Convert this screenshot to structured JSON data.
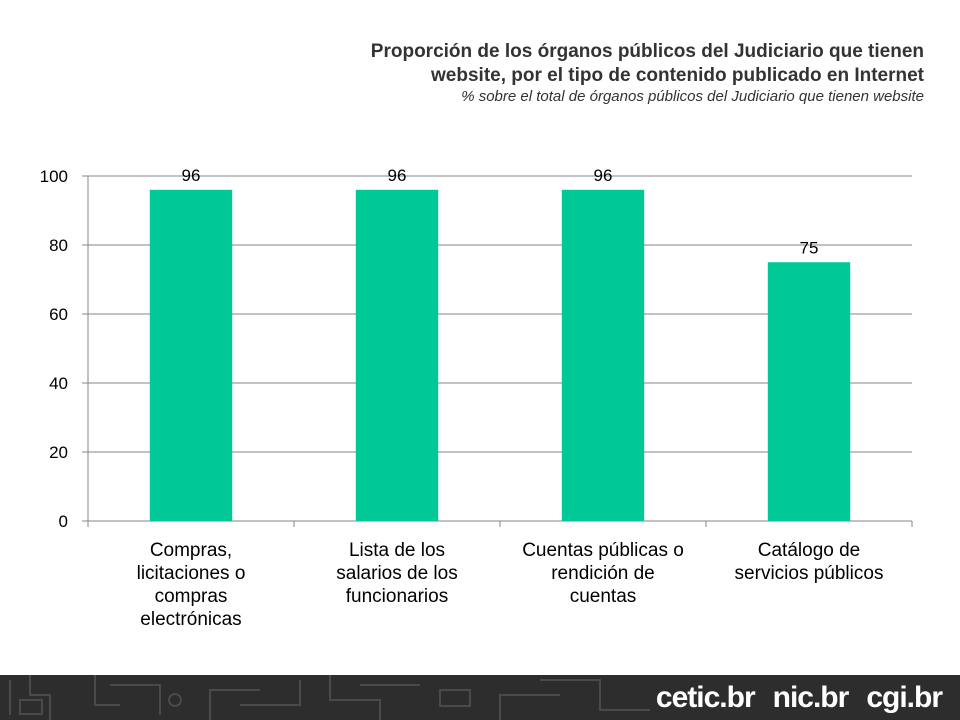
{
  "header": {
    "title_line1": "Proporción de los órganos públicos del Judiciario que tienen",
    "title_line2": "website, por el tipo de contenido publicado en Internet",
    "subtitle": "% sobre el total de órganos públicos del Judiciario que tienen website"
  },
  "chart_data": {
    "type": "bar",
    "categories": [
      [
        "Compras,",
        "licitaciones o",
        "compras",
        "electrónicas"
      ],
      [
        "Lista de los",
        "salarios de los",
        "funcionarios"
      ],
      [
        "Cuentas públicas o",
        "rendición de",
        "cuentas"
      ],
      [
        "Catálogo de",
        "servicios públicos"
      ]
    ],
    "values": [
      96,
      96,
      96,
      75
    ],
    "ylim": [
      0,
      100
    ],
    "yticks": [
      0,
      20,
      40,
      60,
      80,
      100
    ],
    "grid": true,
    "data_labels": true,
    "bar_color": "#00c896",
    "grid_color": "#868686"
  },
  "footer": {
    "logos": [
      "cetic.br",
      "nic.br",
      "cgi.br"
    ]
  }
}
